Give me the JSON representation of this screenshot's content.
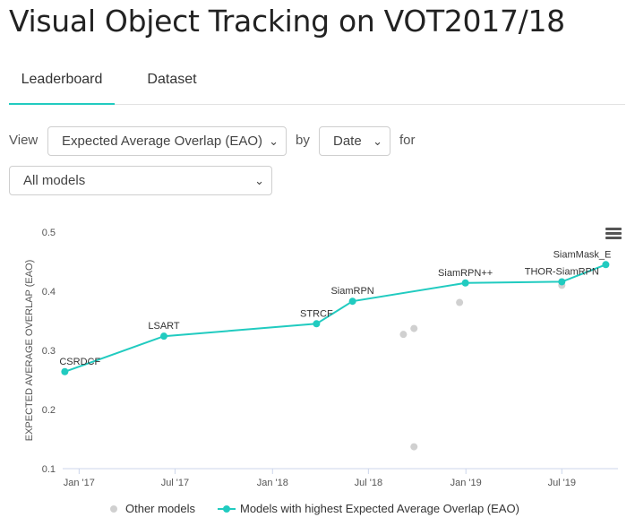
{
  "page_title": "Visual Object Tracking on VOT2017/18",
  "tabs": [
    {
      "label": "Leaderboard",
      "active": true
    },
    {
      "label": "Dataset",
      "active": false
    }
  ],
  "filters": {
    "view_label": "View",
    "metric_value": "Expected Average Overlap (EAO)",
    "by_label": "by",
    "x_value": "Date",
    "for_label": "for",
    "models_value": "All models"
  },
  "icons": {
    "menu": "hamburger-menu-icon",
    "dropdown": "chevron-down-icon"
  },
  "colors": {
    "accent": "#21cbc0",
    "other_models": "#d0d0d0",
    "axis_text": "#555555"
  },
  "chart_data": {
    "type": "scatter",
    "ylabel": "EXPECTED AVERAGE OVERLAP (EAO)",
    "ylim": [
      0.1,
      0.5
    ],
    "yticks": [
      "0.1",
      "0.2",
      "0.3",
      "0.4",
      "0.5"
    ],
    "xlim": [
      "2016-12-01",
      "2019-10-15"
    ],
    "xticks": [
      "Jan '17",
      "Jul '17",
      "Jan '18",
      "Jul '18",
      "Jan '19",
      "Jul '19"
    ],
    "grid": false,
    "legend_position": "bottom",
    "series": [
      {
        "name": "Other models",
        "color": "#d0d0d0",
        "points": [
          {
            "date": "2018-09-05",
            "value": 0.327
          },
          {
            "date": "2018-09-25",
            "value": 0.337
          },
          {
            "date": "2018-09-25",
            "value": 0.137
          },
          {
            "date": "2018-12-20",
            "value": 0.381
          },
          {
            "date": "2019-07-01",
            "value": 0.41
          }
        ]
      },
      {
        "name": "Models with highest Expected Average Overlap (EAO)",
        "color": "#21cbc0",
        "points": [
          {
            "date": "2016-12-05",
            "value": 0.264,
            "label": "CSRDCF"
          },
          {
            "date": "2017-06-10",
            "value": 0.324,
            "label": "LSART"
          },
          {
            "date": "2018-03-25",
            "value": 0.345,
            "label": "STRCF"
          },
          {
            "date": "2018-06-01",
            "value": 0.383,
            "label": "SiamRPN"
          },
          {
            "date": "2018-12-31",
            "value": 0.414,
            "label": "SiamRPN++"
          },
          {
            "date": "2019-07-01",
            "value": 0.416,
            "label": "THOR-SiamRPN"
          },
          {
            "date": "2019-09-22",
            "value": 0.445,
            "label": "SiamMask_E"
          }
        ]
      }
    ]
  }
}
